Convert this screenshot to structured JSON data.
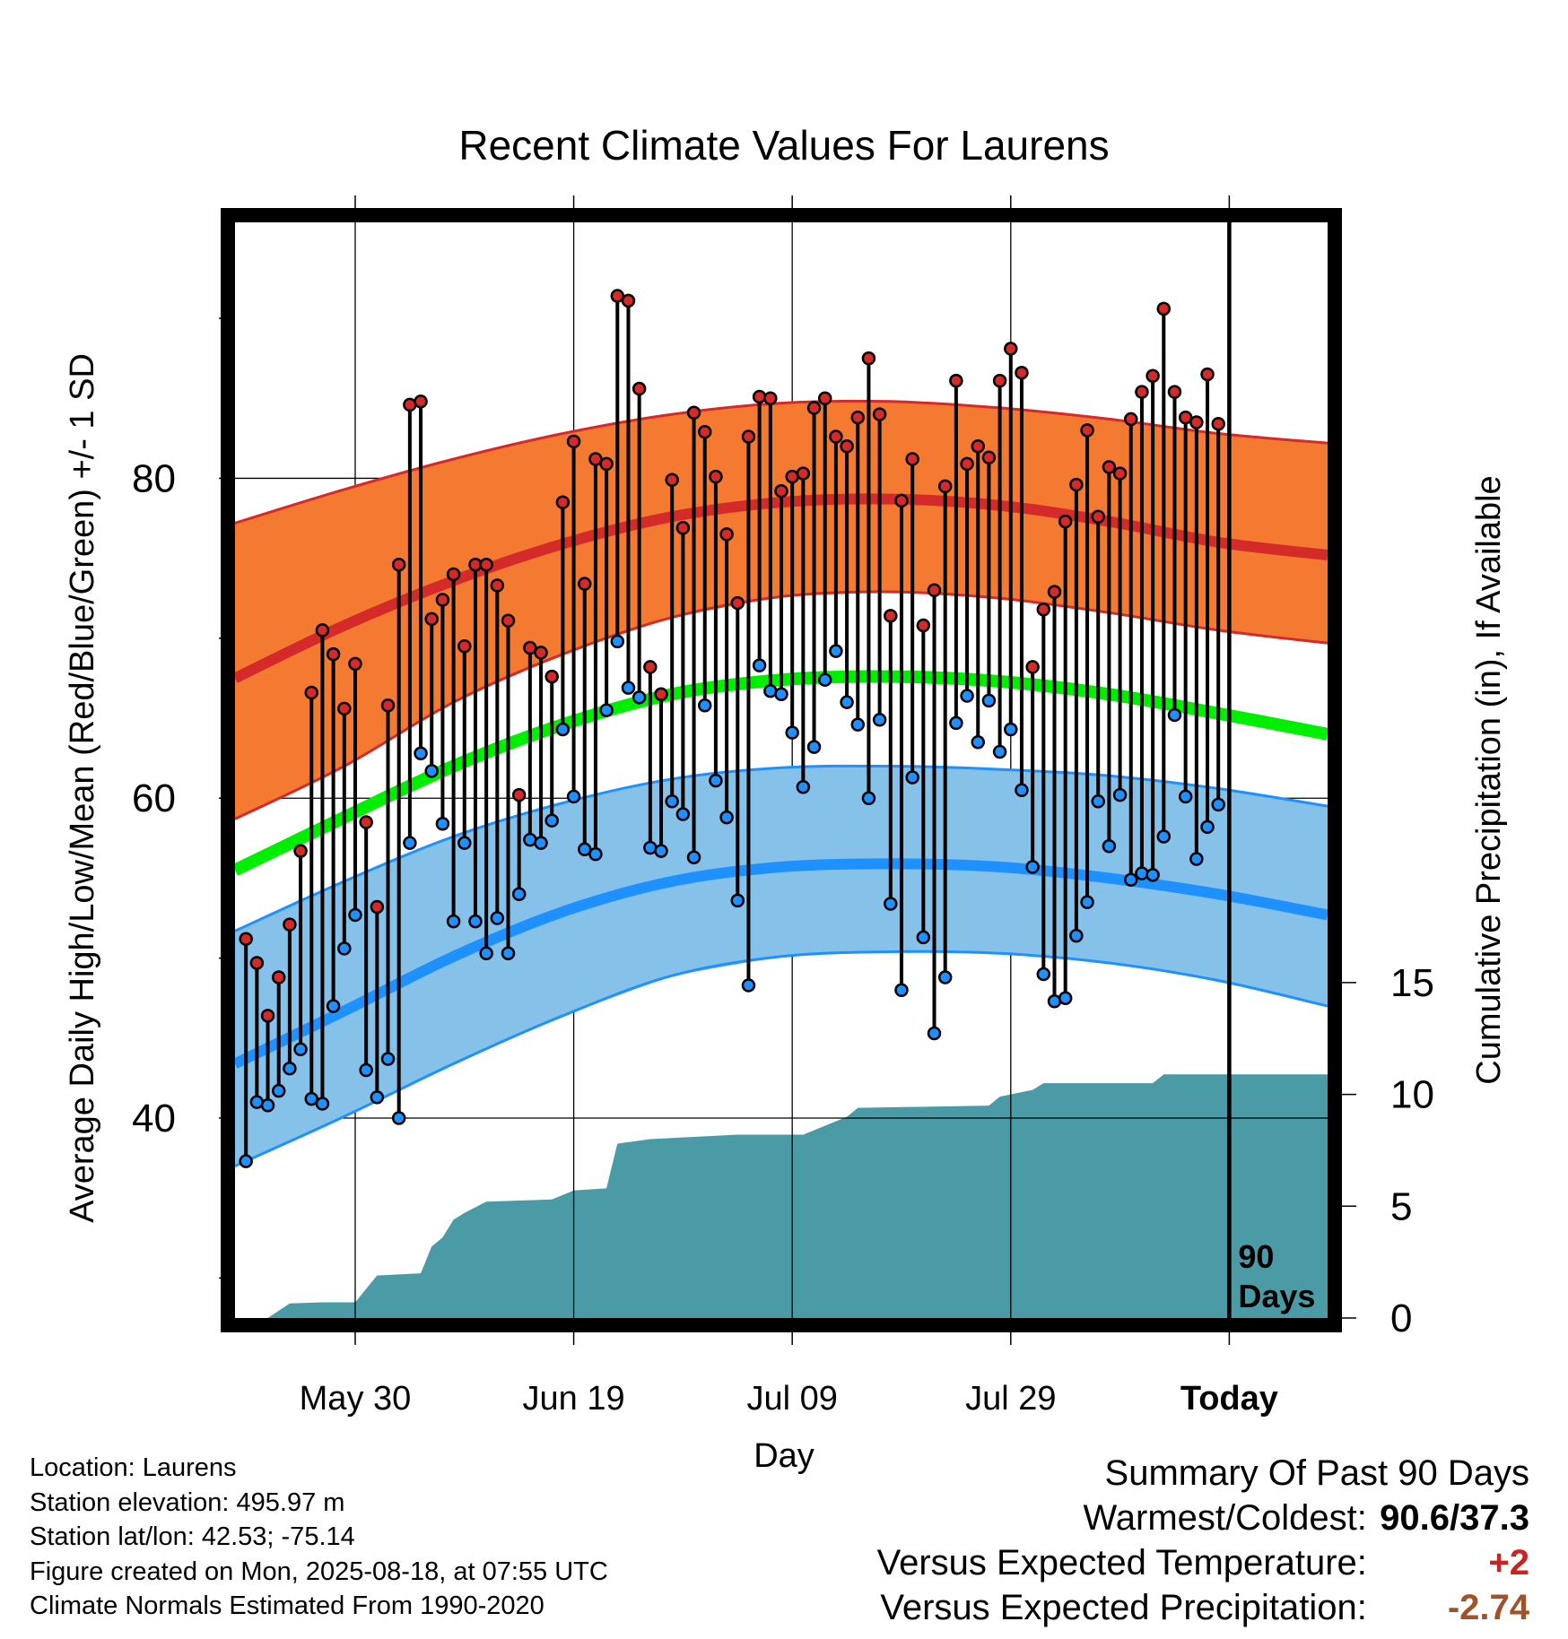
{
  "page": {
    "title": "Recent Climate Values For Laurens",
    "location": "Location: Laurens",
    "elevation": "Station elevation: 495.97 m",
    "latlon": "Station lat/lon: 42.53; -75.14",
    "created": "Figure created on Mon, 2025-08-18, at 07:55 UTC",
    "normals": "Climate Normals Estimated From 1990-2020"
  },
  "summary": {
    "heading": "Summary Of Past 90 Days",
    "warm_cold_label": "Warmest/Coldest:",
    "warm_cold_value": "90.6/37.3",
    "temp_label": "Versus Expected Temperature:",
    "temp_value": "+2",
    "temp_color": "#cc2222",
    "precip_label": "Versus Expected Precipitation:",
    "precip_value": "-2.74",
    "precip_color": "#a0522d"
  },
  "chart_data": {
    "type": "line",
    "title": "Recent Climate Values For Laurens",
    "xlabel": "Day",
    "ylabel": "Average Daily High/Low/Mean (Red/Blue/Green) +/- 1 SD",
    "ylabel_right": "Cumulative Precipitation (in), If Available",
    "x_tick_labels": [
      "May 30",
      "Jun 19",
      "Jul 09",
      "Jul 29",
      "Today"
    ],
    "x_tick_dates": [
      "2025-05-30",
      "2025-06-19",
      "2025-07-09",
      "2025-07-29",
      "2025-08-18"
    ],
    "x_range": [
      "2025-05-19",
      "2025-08-27"
    ],
    "ylim": [
      27.5,
      96
    ],
    "yticks_major": [
      40,
      60,
      80
    ],
    "yticks_minor": [
      30,
      50,
      70,
      90
    ],
    "y2lim": [
      0,
      49
    ],
    "y2ticks": [
      0,
      5,
      10,
      15
    ],
    "grid": true,
    "annotation": [
      "90",
      "Days"
    ],
    "colors": {
      "high_band": "#f47a32",
      "high_mean": "#d42a2a",
      "low_band": "#85c1e9",
      "low_mean": "#1e90ff",
      "mean": "#00ee00",
      "precip": "#4a9ba5",
      "high_dot": "#d42a2a",
      "low_dot": "#1e90ff"
    },
    "normals": {
      "dates": [
        "2025-05-19",
        "2025-05-29",
        "2025-06-08",
        "2025-06-18",
        "2025-06-28",
        "2025-07-08",
        "2025-07-18",
        "2025-07-28",
        "2025-08-07",
        "2025-08-17",
        "2025-08-27"
      ],
      "high_mean": [
        67.5,
        70.8,
        73.6,
        75.9,
        77.6,
        78.5,
        78.7,
        78.3,
        77.3,
        76.0,
        75.2
      ],
      "high_upper": [
        77.2,
        79.3,
        81.2,
        82.8,
        84.0,
        84.7,
        84.8,
        84.4,
        83.7,
        82.8,
        82.2
      ],
      "high_lower": [
        58.7,
        62.0,
        66.0,
        69.0,
        71.3,
        72.6,
        72.9,
        72.5,
        71.6,
        70.5,
        69.7
      ],
      "mean": [
        55.5,
        58.8,
        62.0,
        64.6,
        66.5,
        67.4,
        67.6,
        67.3,
        66.5,
        65.3,
        64.0
      ],
      "low_mean": [
        43.4,
        46.7,
        50.1,
        52.9,
        54.8,
        55.7,
        55.9,
        55.7,
        55.0,
        54.0,
        52.7
      ],
      "low_upper": [
        51.7,
        54.8,
        57.6,
        59.7,
        61.2,
        61.9,
        62.0,
        61.8,
        61.4,
        60.6,
        59.5
      ],
      "low_lower": [
        37.0,
        40.1,
        43.4,
        46.4,
        48.9,
        50.1,
        50.4,
        50.3,
        49.7,
        48.6,
        47.0
      ]
    },
    "daily": {
      "start_date": "2025-05-20",
      "high": [
        51.2,
        49.7,
        46.4,
        48.8,
        52.1,
        56.7,
        66.6,
        70.5,
        69.0,
        65.6,
        68.4,
        58.5,
        53.2,
        65.8,
        74.6,
        84.6,
        84.8,
        71.2,
        72.4,
        74.0,
        69.5,
        74.6,
        74.6,
        73.3,
        71.1,
        60.2,
        69.4,
        69.1,
        67.6,
        78.5,
        82.3,
        73.4,
        81.2,
        80.9,
        91.4,
        91.1,
        85.6,
        68.2,
        66.5,
        79.9,
        76.9,
        84.1,
        82.9,
        80.1,
        76.5,
        72.2,
        82.6,
        85.1,
        85.0,
        79.2,
        80.1,
        80.3,
        84.4,
        85.0,
        82.6,
        82.0,
        83.8,
        87.5,
        84.0,
        71.4,
        78.6,
        81.2,
        70.8,
        73.0,
        79.5,
        86.1,
        80.9,
        82.0,
        81.3,
        86.1,
        88.1,
        86.6,
        68.2,
        71.8,
        72.9,
        77.3,
        79.6,
        83.0,
        77.6,
        80.7,
        80.3,
        83.7,
        85.4,
        86.4,
        90.6,
        85.4,
        83.8,
        83.5,
        86.5,
        83.4
      ],
      "low": [
        37.3,
        41.0,
        40.8,
        41.7,
        43.1,
        44.3,
        41.2,
        40.9,
        47.0,
        50.6,
        52.7,
        43.0,
        41.3,
        43.7,
        40.0,
        57.2,
        62.8,
        61.7,
        58.4,
        52.3,
        57.2,
        52.3,
        50.3,
        52.5,
        50.3,
        54.0,
        57.4,
        57.2,
        58.6,
        64.3,
        60.1,
        56.8,
        56.5,
        65.5,
        69.8,
        66.9,
        66.3,
        56.9,
        56.7,
        59.8,
        59.0,
        56.3,
        65.8,
        61.1,
        58.8,
        53.6,
        48.3,
        68.3,
        66.7,
        66.5,
        64.1,
        60.7,
        63.2,
        67.4,
        69.2,
        66.0,
        64.6,
        60.0,
        64.9,
        53.4,
        48.0,
        61.3,
        51.3,
        45.3,
        48.8,
        64.7,
        66.4,
        63.5,
        66.1,
        62.9,
        64.3,
        60.5,
        55.7,
        49.0,
        47.3,
        47.5,
        51.4,
        53.5,
        59.8,
        57.0,
        60.2,
        54.9,
        55.3,
        55.2,
        57.6,
        65.2,
        60.1,
        56.2,
        58.2,
        59.6
      ]
    },
    "precipitation": {
      "dates": [
        "2025-05-20",
        "2025-05-22",
        "2025-05-24",
        "2025-05-27",
        "2025-05-30",
        "2025-06-01",
        "2025-06-05",
        "2025-06-06",
        "2025-06-07",
        "2025-06-08",
        "2025-06-09",
        "2025-06-11",
        "2025-06-17",
        "2025-06-19",
        "2025-06-22",
        "2025-06-23",
        "2025-06-26",
        "2025-06-30",
        "2025-07-04",
        "2025-07-10",
        "2025-07-14",
        "2025-07-15",
        "2025-07-27",
        "2025-07-28",
        "2025-07-31",
        "2025-08-01",
        "2025-08-11",
        "2025-08-12",
        "2025-08-26"
      ],
      "values": [
        0.0,
        0.0,
        0.65,
        0.7,
        0.7,
        1.9,
        2.0,
        3.2,
        3.6,
        4.4,
        4.7,
        5.2,
        5.3,
        5.7,
        5.8,
        7.8,
        8.0,
        8.1,
        8.2,
        8.2,
        9.0,
        9.4,
        9.5,
        9.9,
        10.2,
        10.5,
        10.5,
        10.9,
        10.9
      ]
    }
  }
}
